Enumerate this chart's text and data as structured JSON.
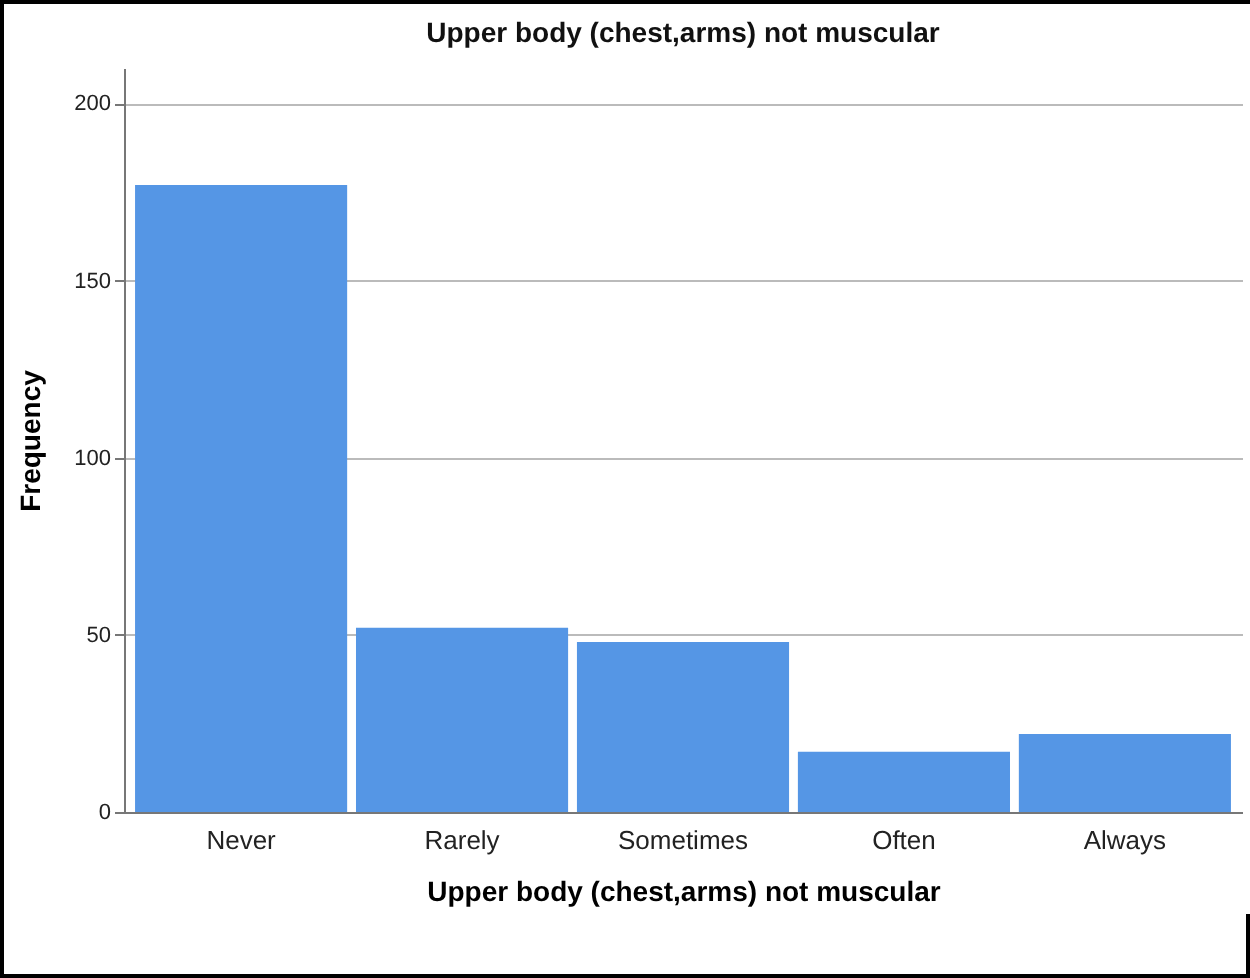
{
  "chart_data": {
    "type": "bar",
    "title": "Upper body (chest,arms) not muscular",
    "xlabel": "Upper body (chest,arms) not muscular",
    "ylabel": "Frequency",
    "categories": [
      "Never",
      "Rarely",
      "Sometimes",
      "Often",
      "Always"
    ],
    "values": [
      177,
      52,
      48,
      17,
      22
    ],
    "color": "#5596e5",
    "ylim": [
      0,
      210
    ],
    "yticks": [
      0,
      50,
      100,
      150,
      200
    ],
    "grid": "y"
  }
}
